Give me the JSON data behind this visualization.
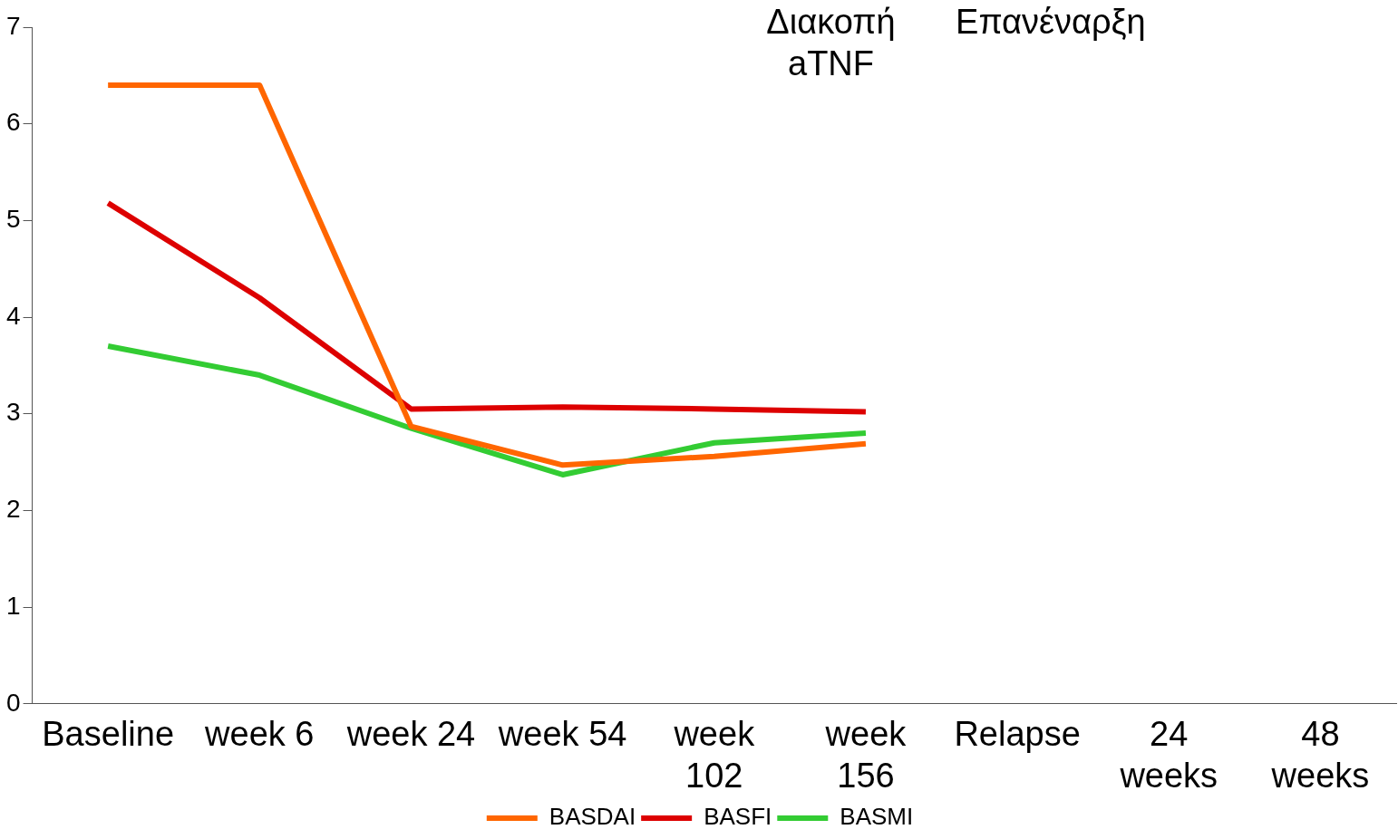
{
  "chart_data": {
    "type": "line",
    "categories": [
      "Baseline",
      "week 6",
      "week 24",
      "week 54",
      "week 102",
      "week 156",
      "Relapse",
      "24 weeks",
      "48 weeks"
    ],
    "series": [
      {
        "name": "BASDAI",
        "color": "#ff6600",
        "values": [
          6.4,
          6.4,
          2.87,
          2.47,
          2.56,
          2.69,
          null,
          null,
          null
        ]
      },
      {
        "name": "BASFI",
        "color": "#dd0000",
        "values": [
          5.18,
          4.2,
          3.05,
          3.07,
          3.05,
          3.02,
          null,
          null,
          null
        ]
      },
      {
        "name": "BASMI",
        "color": "#33cc33",
        "values": [
          3.7,
          3.4,
          2.85,
          2.37,
          2.7,
          2.8,
          null,
          null,
          null
        ]
      }
    ],
    "ylim": [
      0,
      7
    ],
    "yticks": [
      0,
      1,
      2,
      3,
      4,
      5,
      6,
      7
    ],
    "grid": false,
    "legend": "bottom",
    "marker": "none",
    "line_style": "solid",
    "annotations": [
      "Διακοπή\naTNF",
      "Επανέναρξη"
    ]
  }
}
